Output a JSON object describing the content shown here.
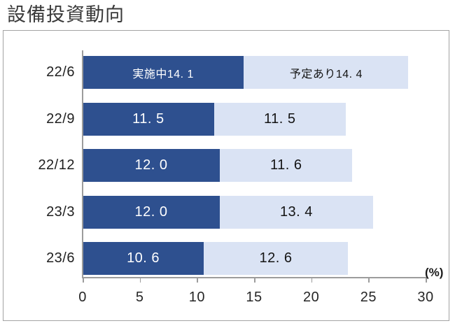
{
  "page": {
    "title": "設備投資動向"
  },
  "colors": {
    "implementing_fill": "#2e508f",
    "planned_fill": "#dae3f4",
    "implementing_label_text": "#ffffff",
    "planned_label_text": "#141414",
    "frame_border": "#a3a3a3",
    "axis_line": "#9c9c9c",
    "tick_text": "#262626",
    "title_text": "#3a3a3a",
    "background": "#ffffff"
  },
  "chart_data": {
    "type": "bar",
    "orientation": "horizontal",
    "stacked": true,
    "title": "設備投資動向",
    "categories": [
      "22/6",
      "22/9",
      "22/12",
      "23/3",
      "23/6"
    ],
    "series": [
      {
        "name": "実施中",
        "color": "#2e508f",
        "label_color": "#ffffff",
        "values": [
          14.1,
          11.5,
          12.0,
          12.0,
          10.6
        ],
        "labels": [
          "実施中14. 1",
          "11. 5",
          "12. 0",
          "12. 0",
          "10. 6"
        ]
      },
      {
        "name": "予定あり",
        "color": "#dae3f4",
        "label_color": "#141414",
        "values": [
          14.4,
          11.5,
          11.6,
          13.4,
          12.6
        ],
        "labels": [
          "予定あり14. 4",
          "11. 5",
          "11. 6",
          "13. 4",
          "12. 6"
        ]
      }
    ],
    "x_ticks": [
      "0",
      "5",
      "10",
      "15",
      "20",
      "25",
      "30"
    ],
    "x_tick_values": [
      0,
      5,
      10,
      15,
      20,
      25,
      30
    ],
    "xlim": [
      0,
      30
    ],
    "x_unit_label": "(%)",
    "xlabel": "",
    "ylabel": "",
    "legend": "none",
    "gridlines": false
  }
}
